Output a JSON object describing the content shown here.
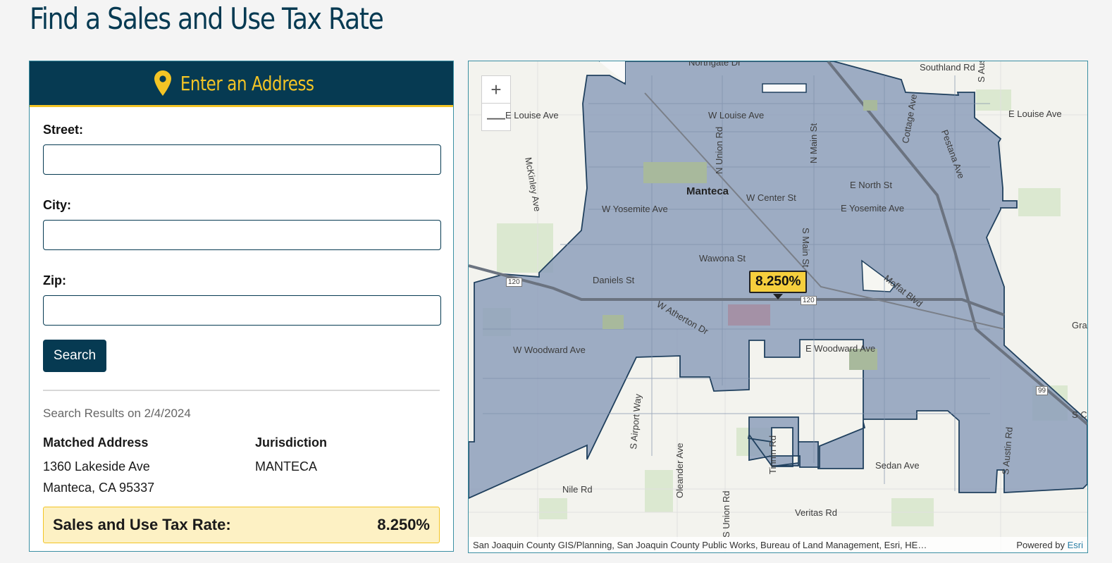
{
  "title": "Find a Sales and Use Tax Rate",
  "panel": {
    "header": "Enter an Address",
    "street_label": "Street:",
    "city_label": "City:",
    "zip_label": "Zip:",
    "street_value": "",
    "city_value": "",
    "zip_value": "",
    "search_label": "Search",
    "results_date": "Search Results on 2/4/2024",
    "matched_address_label": "Matched Address",
    "address_line1": "1360 Lakeside Ave",
    "address_line2": "Manteca, CA 95337",
    "jurisdiction_label": "Jurisdiction",
    "jurisdiction": "MANTECA",
    "rate_label": "Sales and Use Tax Rate:",
    "rate_value": "8.250%"
  },
  "map": {
    "zoom_in": "+",
    "zoom_out": "—",
    "callout": "8.250%",
    "city": "Manteca",
    "roads": {
      "northgate": "Northgate Dr",
      "southland": "Southland Rd",
      "s_austin_top": "S Austin R",
      "e_louise_left": "E Louise Ave",
      "w_louise": "W Louise Ave",
      "e_louise_right": "E Louise Ave",
      "cottage": "Cottage Ave",
      "pestana": "Pestana Ave",
      "n_union": "N Union Rd",
      "n_main": "N Main St",
      "mckinley": "McKinley Ave",
      "e_north": "E North St",
      "w_center": "W Center St",
      "w_yosemite": "W Yosemite Ave",
      "e_yosemite": "E Yosemite Ave",
      "s_main": "S Main St",
      "wawona": "Wawona St",
      "daniels": "Daniels St",
      "moffat": "Moffat Blvd",
      "w_atherton": "W Atherton Dr",
      "w_woodward": "W Woodward Ave",
      "e_woodward": "E Woodward Ave",
      "s_airport": "S Airport Way",
      "tinnin": "Tinnin Rd",
      "s_austin_bottom": "S Austin Rd",
      "oleander": "Oleander Ave",
      "sedan": "Sedan Ave",
      "nile": "Nile Rd",
      "veritas": "Veritas Rd",
      "s_union": "S Union Rd",
      "hwy_120a": "120",
      "hwy_120b": "120",
      "hwy_99": "99",
      "gra": "Gra",
      "sc": "S C"
    },
    "attribution": "San Joaquin County GIS/Planning, San Joaquin County Public Works, Bureau of Land Management, Esri, HE…",
    "powered_by": "Powered by",
    "esri": "Esri"
  },
  "colors": {
    "navy": "#063a52",
    "gold": "#f3c425",
    "jurisdiction_fill": "#8d9fbb"
  }
}
